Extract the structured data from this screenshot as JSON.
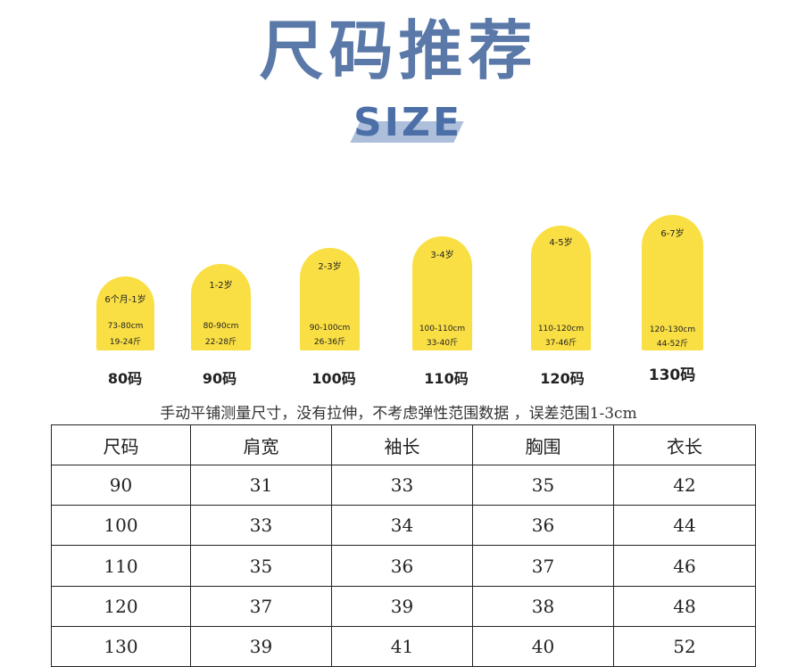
{
  "header": {
    "title": "尺码推荐",
    "subtitle": "SIZE"
  },
  "sizes": [
    {
      "age": "6个月-1岁",
      "height": "73-80cm",
      "weight": "19-24斤",
      "code": "80码"
    },
    {
      "age": "1-2岁",
      "height": "80-90cm",
      "weight": "22-28斤",
      "code": "90码"
    },
    {
      "age": "2-3岁",
      "height": "90-100cm",
      "weight": "26-36斤",
      "code": "100码"
    },
    {
      "age": "3-4岁",
      "height": "100-110cm",
      "weight": "33-40斤",
      "code": "110码"
    },
    {
      "age": "4-5岁",
      "height": "110-120cm",
      "weight": "37-46斤",
      "code": "120码"
    },
    {
      "age": "6-7岁",
      "height": "120-130cm",
      "weight": "44-52斤",
      "code": "130码"
    }
  ],
  "note": "手动平铺测量尺寸，没有拉伸，不考虑弹性范围数据 ，误差范围1-3cm",
  "table": {
    "headers": [
      "尺码",
      "肩宽",
      "袖长",
      "胸围",
      "衣长"
    ],
    "rows": [
      [
        "90",
        "31",
        "33",
        "35",
        "42"
      ],
      [
        "100",
        "33",
        "34",
        "36",
        "44"
      ],
      [
        "110",
        "35",
        "36",
        "37",
        "46"
      ],
      [
        "120",
        "37",
        "39",
        "38",
        "48"
      ],
      [
        "130",
        "39",
        "41",
        "40",
        "52"
      ]
    ]
  },
  "colors": {
    "badge": "#f9df44",
    "title": "#5a78a8",
    "size_stroke": "#aebfdc"
  }
}
